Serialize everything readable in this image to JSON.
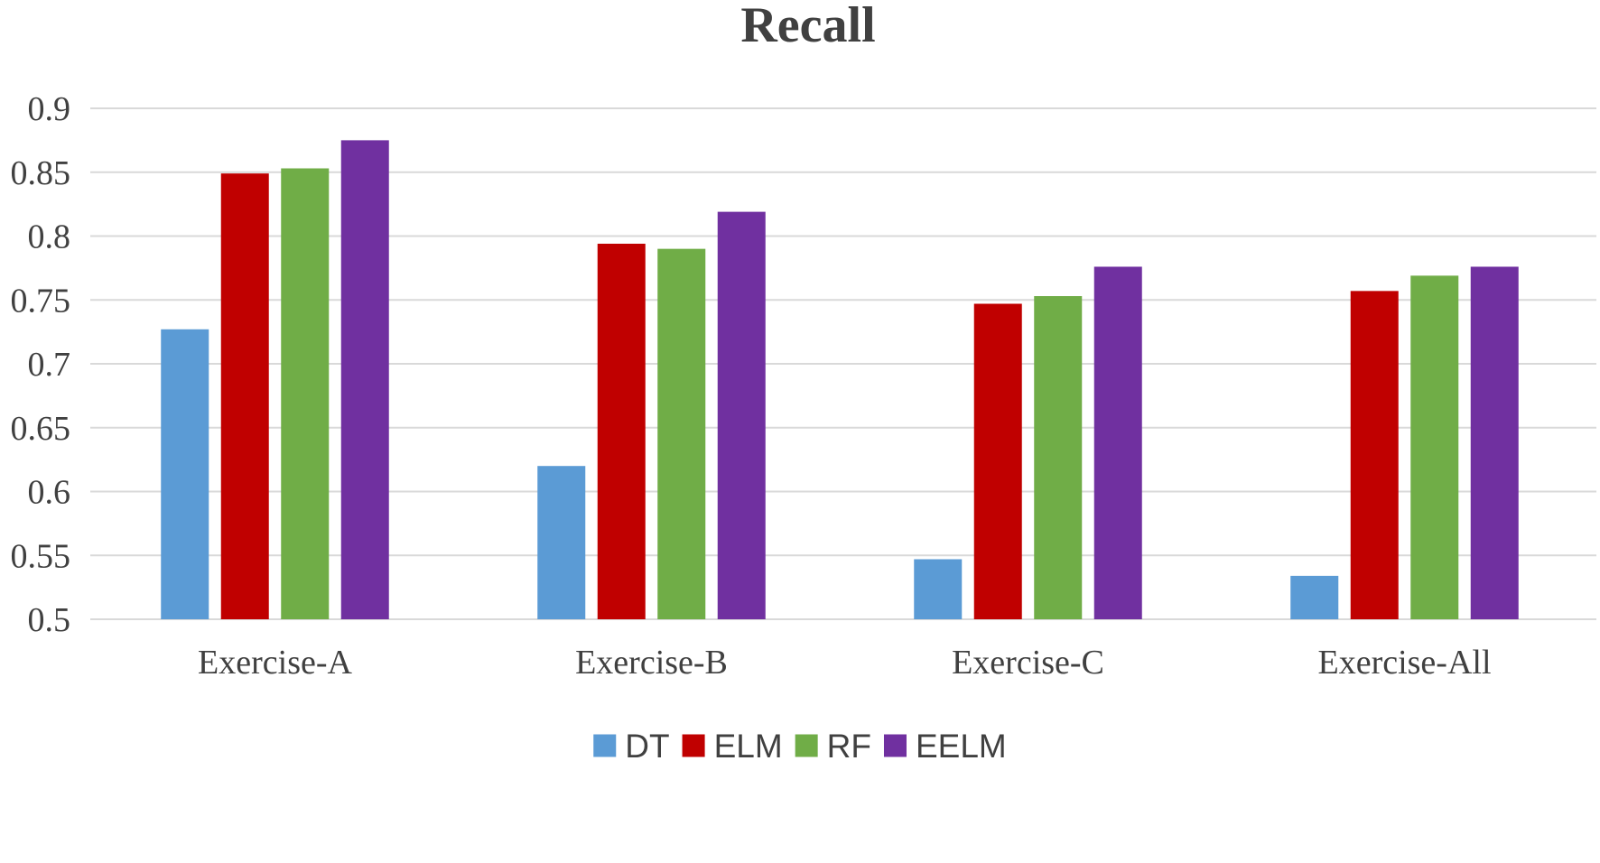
{
  "chart_data": {
    "type": "bar",
    "title": "Recall",
    "xlabel": "",
    "ylabel": "",
    "categories": [
      "Exercise-A",
      "Exercise-B",
      "Exercise-C",
      "Exercise-All"
    ],
    "series": [
      {
        "name": "DT",
        "color": "#5b9bd5",
        "values": [
          0.727,
          0.62,
          0.547,
          0.534
        ]
      },
      {
        "name": "ELM",
        "color": "#c00000",
        "values": [
          0.849,
          0.794,
          0.747,
          0.757
        ]
      },
      {
        "name": "RF",
        "color": "#70ad47",
        "values": [
          0.853,
          0.79,
          0.753,
          0.769
        ]
      },
      {
        "name": "EELM",
        "color": "#7030a0",
        "values": [
          0.875,
          0.819,
          0.776,
          0.776
        ]
      }
    ],
    "ylim": [
      0.5,
      0.9
    ],
    "yticks": [
      "0.5",
      "0.55",
      "0.6",
      "0.65",
      "0.7",
      "0.75",
      "0.8",
      "0.85",
      "0.9"
    ],
    "grid": true,
    "legend_position": "bottom-center"
  }
}
